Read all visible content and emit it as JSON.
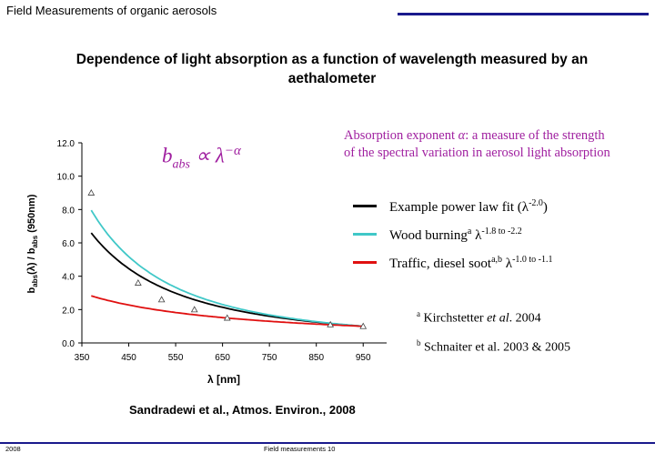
{
  "header": {
    "title": "Field Measurements of organic aerosols"
  },
  "slide_title": "Dependence of light absorption as a function of wavelength measured by an aethalometer",
  "annotation": {
    "prefix": "Absorption exponent ",
    "symbol": "α",
    "suffix": ": a measure of the strength of the spectral variation in aerosol light absorption"
  },
  "formula": {
    "b": "b",
    "sub": "abs",
    "rest": " ∝ λ",
    "exp": "−α"
  },
  "legend": [
    {
      "label": "Example power law fit (λ",
      "sup": "-2.0",
      "tail": ")",
      "color": "#000000"
    },
    {
      "label": "Wood burning",
      "sup": "a",
      "label2": " λ",
      "sup2": "-1.8 to  -2.2",
      "color": "#40c8c8"
    },
    {
      "label": "Traffic, diesel soot",
      "sup": "a,b",
      "label2": " λ",
      "sup2": "-1.0 to -1.1",
      "color": "#e01010"
    }
  ],
  "references": [
    {
      "sup": "a",
      "text_before": " Kirchstetter ",
      "italic": "et al",
      "text_after": ". 2004"
    },
    {
      "sup": "b",
      "text_before": " Schnaiter et al. 2003 & 2005",
      "italic": "",
      "text_after": ""
    }
  ],
  "source": "Sandradewi et al., Atmos. Environ., 2008",
  "footer": {
    "left": "2008",
    "center": "Field measurements 10"
  },
  "chart_data": {
    "type": "line",
    "xlabel": "λ [nm]",
    "ylabel": "babs(λ) / babs (950nm)",
    "xlim": [
      350,
      1000
    ],
    "ylim": [
      0,
      12
    ],
    "x_ticks": [
      "350",
      "450",
      "550",
      "650",
      "750",
      "850",
      "950"
    ],
    "y_ticks": [
      "0.0",
      "2.0",
      "4.0",
      "6.0",
      "8.0",
      "10.0",
      "12.0"
    ],
    "grid": false,
    "curves": [
      {
        "name": "Example power law fit",
        "exponent": 2.0,
        "color": "#000000",
        "x_range": [
          370,
          950
        ]
      },
      {
        "name": "Wood burning",
        "exponent": 2.2,
        "color": "#40c8c8",
        "x_range": [
          370,
          950
        ]
      },
      {
        "name": "Traffic, diesel soot",
        "exponent": 1.1,
        "color": "#e01010",
        "x_range": [
          370,
          950
        ]
      }
    ],
    "points": {
      "marker": "triangle",
      "x": [
        370,
        470,
        520,
        590,
        660,
        880,
        950
      ],
      "y": [
        9.0,
        3.6,
        2.6,
        2.0,
        1.5,
        1.1,
        1.0
      ]
    }
  }
}
